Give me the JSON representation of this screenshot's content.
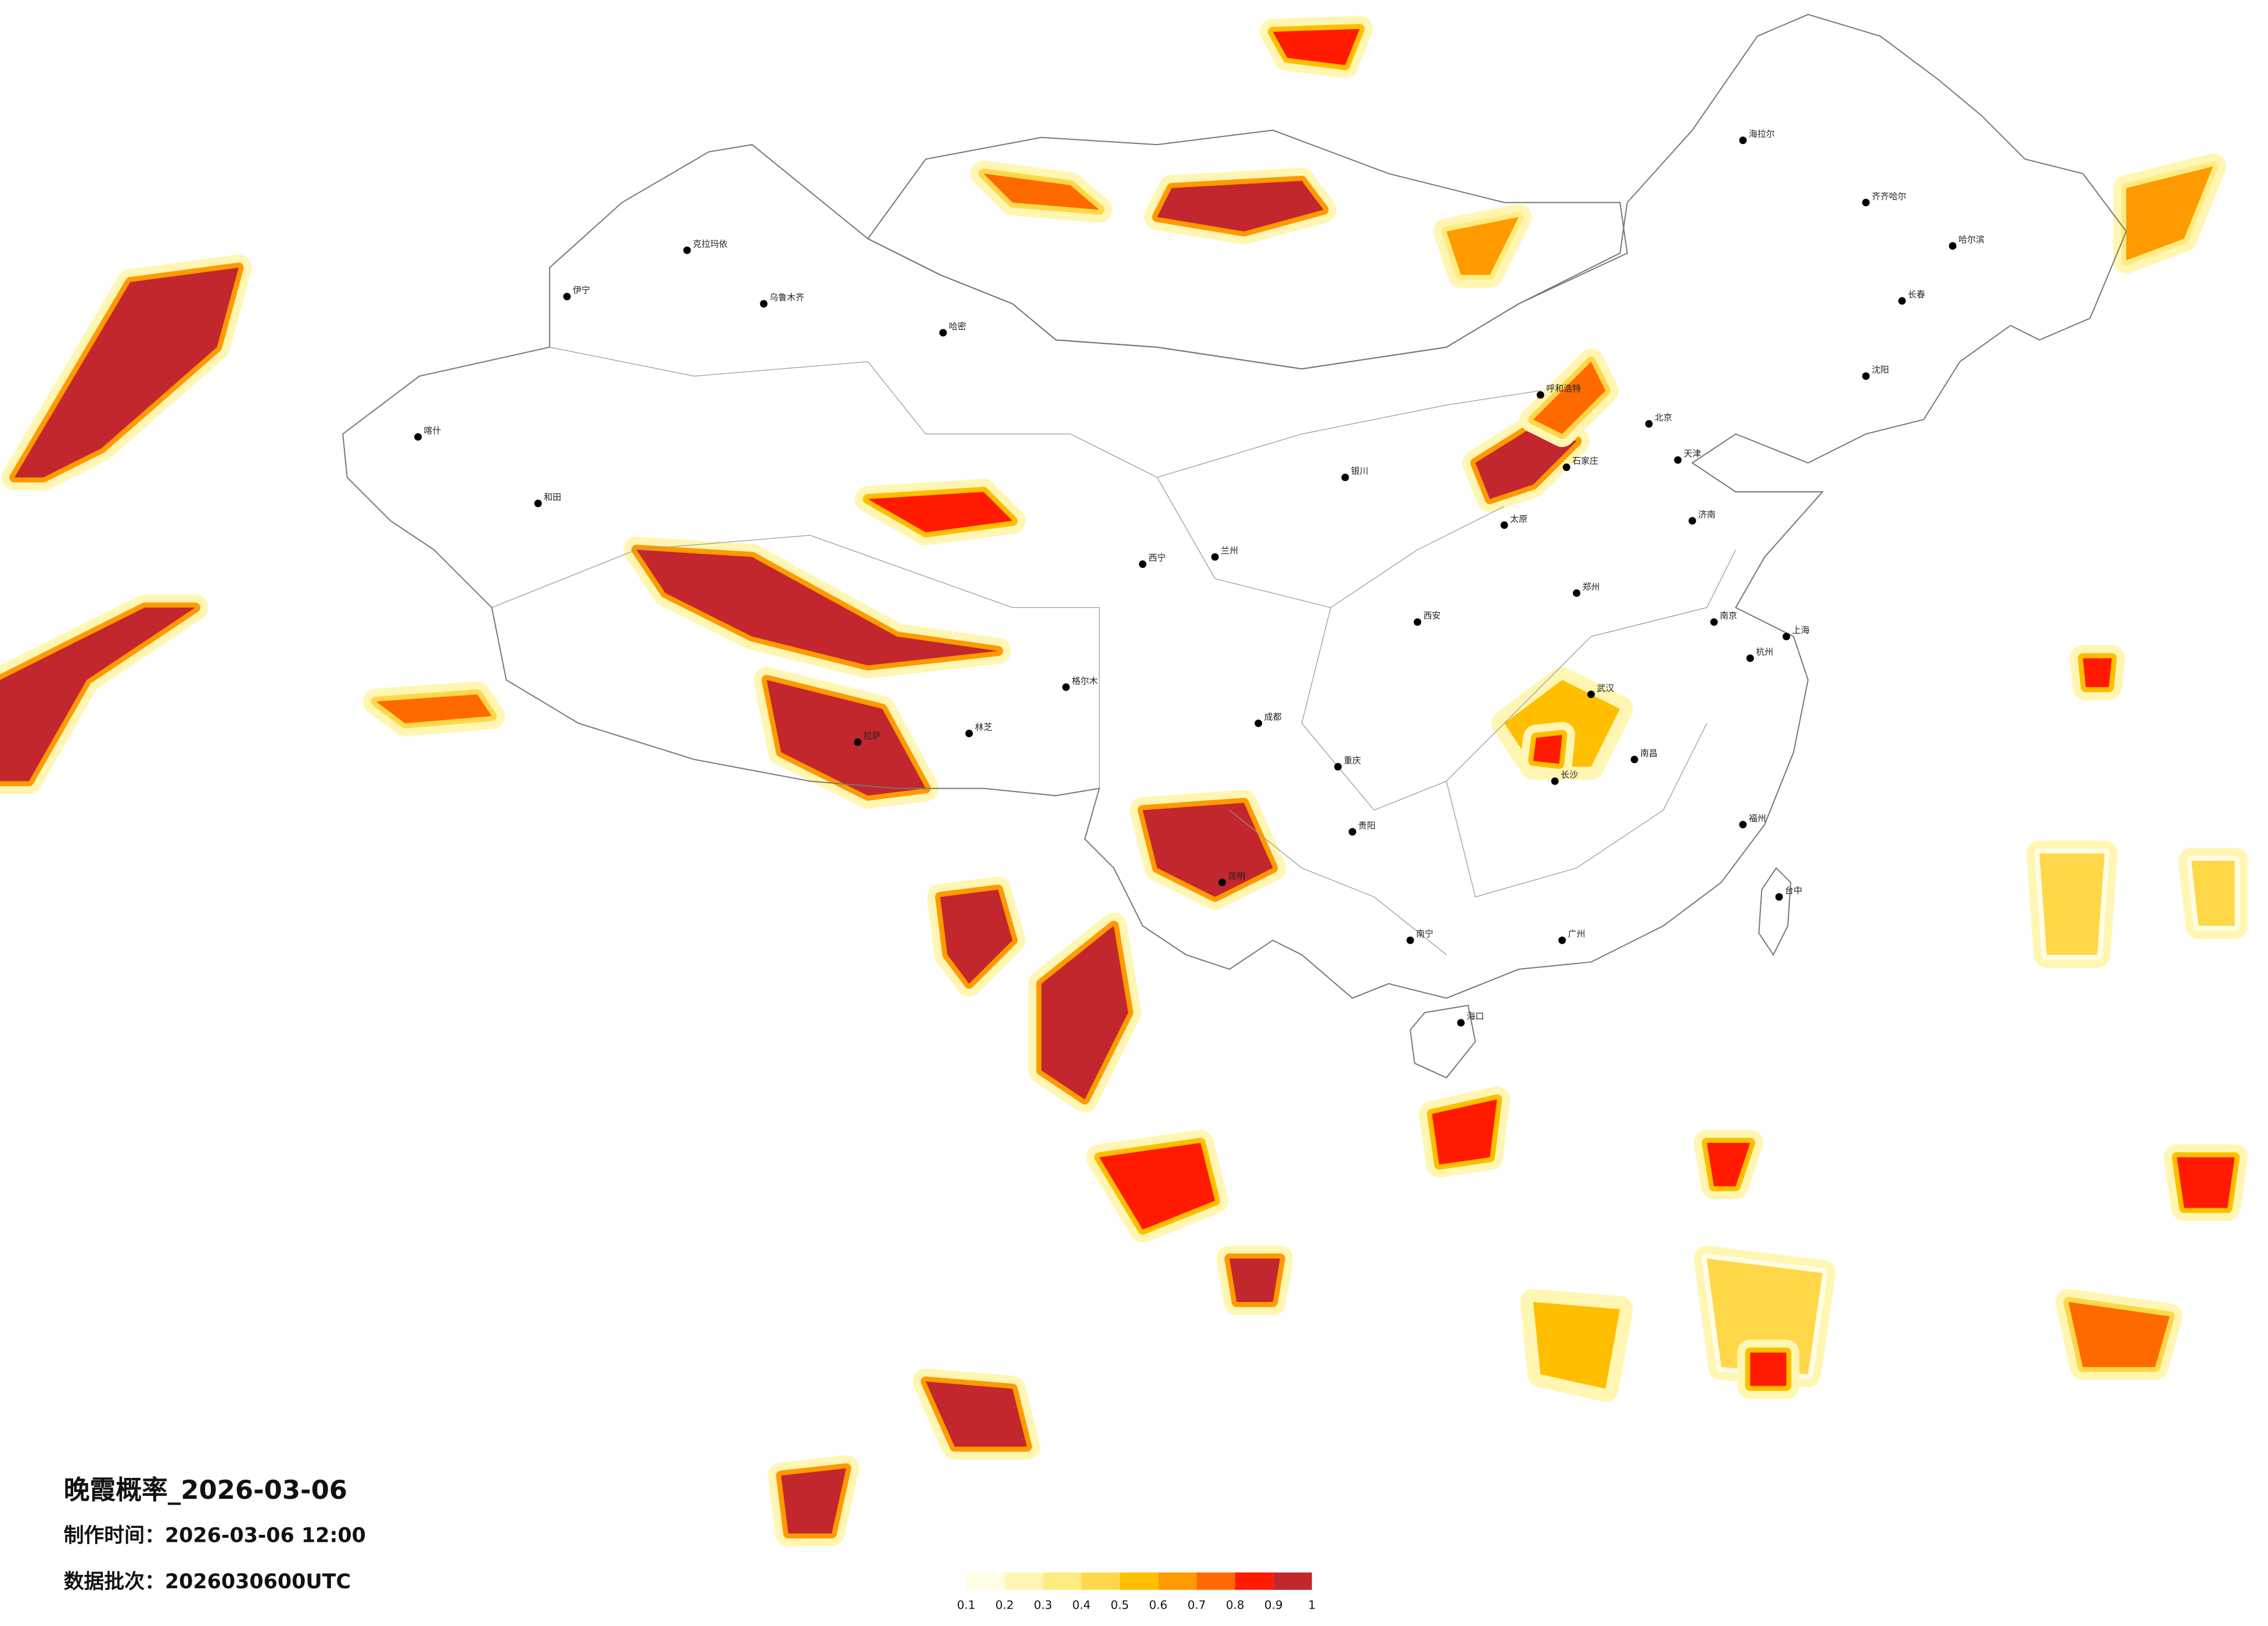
{
  "title": "晚霞概率_2026-03-06",
  "made_time": "制作时间：2026-03-06 12:00",
  "batch": "数据批次：2026030600UTC",
  "colorbar": {
    "ticks": [
      0.1,
      0.2,
      0.3,
      0.4,
      0.5,
      0.6,
      0.7,
      0.8,
      0.9,
      1
    ],
    "colors": [
      "#fffde3",
      "#fff6b3",
      "#ffec80",
      "#ffd84a",
      "#ffbf00",
      "#ff9a00",
      "#ff6a00",
      "#ff1a00",
      "#c1272d"
    ]
  },
  "cities": [
    "海拉尔",
    "齐齐哈尔",
    "哈尔滨",
    "长春",
    "沈阳",
    "北京",
    "天津",
    "呼和浩特",
    "石家庄",
    "太原",
    "济南",
    "银川",
    "兰州",
    "西宁",
    "西安",
    "郑州",
    "武汉",
    "成都",
    "重庆",
    "昆明",
    "贵阳",
    "长沙",
    "南昌",
    "杭州",
    "上海",
    "南京",
    "福州",
    "广州",
    "南宁",
    "海口",
    "台中",
    "拉萨",
    "克拉玛依",
    "乌鲁木齐",
    "伊宁",
    "喀什",
    "和田",
    "哈密",
    "格尔木",
    "林芝"
  ]
}
